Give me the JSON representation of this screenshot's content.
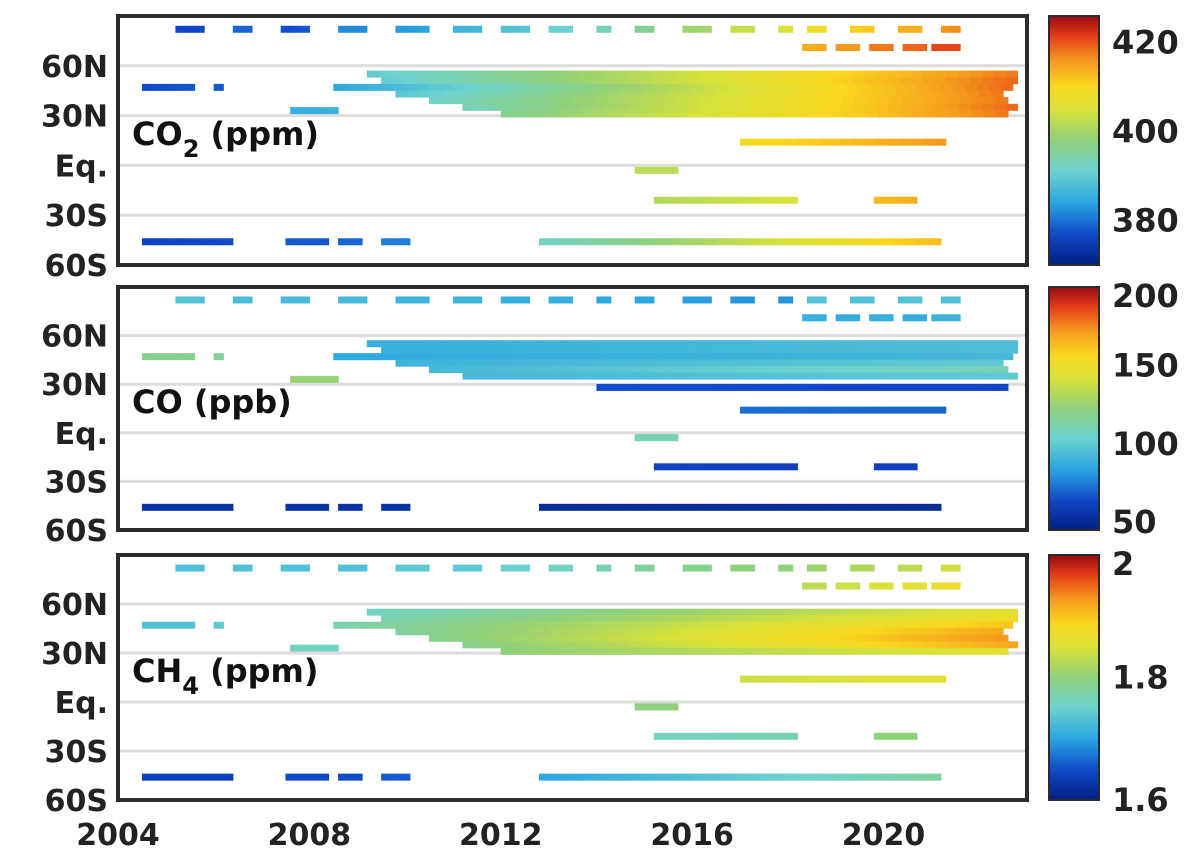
{
  "chart_data": [
    {
      "type": "heatmap",
      "title_main": "CO",
      "title_sub": "2",
      "title_rest": " (ppm)",
      "xlim": [
        2004,
        2023
      ],
      "ylim": [
        -60,
        90
      ],
      "x_ticks": [
        "2004",
        "2008",
        "2012",
        "2016",
        "2020"
      ],
      "y_ticks": [
        "60N",
        "30N",
        "Eq.",
        "30S",
        "60S"
      ],
      "colorbar": {
        "range": [
          370,
          426
        ],
        "ticks": [
          {
            "v": 420,
            "label": "420"
          },
          {
            "v": 400,
            "label": "400"
          },
          {
            "v": 380,
            "label": "380"
          }
        ]
      },
      "tracks": [
        {
          "lat": 82,
          "segments": [
            [
              2005.2,
              2005.8,
              376,
              377
            ],
            [
              2006.4,
              2006.8,
              379,
              379
            ],
            [
              2007.4,
              2008.0,
              377,
              378
            ],
            [
              2008.6,
              2009.2,
              382,
              382
            ],
            [
              2009.8,
              2010.5,
              383,
              384
            ],
            [
              2011.0,
              2011.6,
              386,
              387
            ],
            [
              2012.0,
              2012.6,
              388,
              389
            ],
            [
              2013.0,
              2013.5,
              391,
              391
            ],
            [
              2014.0,
              2014.3,
              393,
              393
            ],
            [
              2014.8,
              2015.2,
              396,
              396
            ],
            [
              2015.8,
              2016.4,
              399,
              400
            ],
            [
              2016.8,
              2017.3,
              403,
              403
            ],
            [
              2017.8,
              2018.1,
              405,
              405
            ],
            [
              2018.4,
              2018.8,
              408,
              409
            ],
            [
              2019.3,
              2019.8,
              411,
              412
            ],
            [
              2020.3,
              2020.8,
              414,
              414
            ],
            [
              2021.2,
              2021.6,
              416,
              417
            ]
          ]
        },
        {
          "lat": 71,
          "segments": [
            [
              2018.3,
              2018.8,
              414,
              415
            ],
            [
              2019.0,
              2019.5,
              416,
              416
            ],
            [
              2019.7,
              2020.2,
              418,
              418
            ],
            [
              2020.4,
              2020.9,
              419,
              419
            ],
            [
              2021.0,
              2021.6,
              421,
              421
            ]
          ]
        },
        {
          "lat": 55,
          "segments": [
            [
              2009.2,
              2022.8,
              390,
              418
            ]
          ]
        },
        {
          "lat": 51,
          "segments": [
            [
              2009.5,
              2022.8,
              390,
              419
            ]
          ]
        },
        {
          "lat": 47,
          "segments": [
            [
              2004.5,
              2005.6,
              377,
              378
            ],
            [
              2006.0,
              2006.2,
              378,
              378
            ],
            [
              2008.5,
              2022.7,
              384,
              419
            ]
          ]
        },
        {
          "lat": 43,
          "segments": [
            [
              2009.8,
              2022.5,
              389,
              418
            ]
          ]
        },
        {
          "lat": 39,
          "segments": [
            [
              2010.5,
              2022.6,
              392,
              418
            ]
          ]
        },
        {
          "lat": 35,
          "segments": [
            [
              2011.2,
              2022.8,
              393,
              419
            ]
          ]
        },
        {
          "lat": 33,
          "segments": [
            [
              2007.6,
              2008.6,
              385,
              386
            ]
          ]
        },
        {
          "lat": 31,
          "segments": [
            [
              2012.0,
              2022.6,
              396,
              418
            ]
          ]
        },
        {
          "lat": 14,
          "segments": [
            [
              2017.0,
              2021.3,
              409,
              416
            ]
          ]
        },
        {
          "lat": -3,
          "segments": [
            [
              2014.8,
              2015.7,
              402,
              402
            ]
          ]
        },
        {
          "lat": -21,
          "segments": [
            [
              2015.2,
              2018.2,
              401,
              405
            ],
            [
              2019.8,
              2020.7,
              413,
              414
            ]
          ]
        },
        {
          "lat": -46,
          "segments": [
            [
              2004.5,
              2006.4,
              376,
              377
            ],
            [
              2007.5,
              2008.4,
              378,
              378
            ],
            [
              2008.6,
              2009.1,
              379,
              379
            ],
            [
              2009.5,
              2010.1,
              381,
              381
            ],
            [
              2012.8,
              2021.2,
              392,
              413
            ]
          ]
        }
      ]
    },
    {
      "type": "heatmap",
      "title_main": "CO (ppb)",
      "title_sub": "",
      "title_rest": "",
      "xlim": [
        2004,
        2023
      ],
      "ylim": [
        -60,
        90
      ],
      "x_ticks": [
        "2004",
        "2008",
        "2012",
        "2016",
        "2020"
      ],
      "y_ticks": [
        "60N",
        "30N",
        "Eq.",
        "30S",
        "60S"
      ],
      "colorbar": {
        "range": [
          45,
          200
        ],
        "ticks": [
          {
            "v": 200,
            "label": "200"
          },
          {
            "v": 150,
            "label": "150"
          },
          {
            "v": 100,
            "label": "100"
          },
          {
            "v": 50,
            "label": "50"
          }
        ]
      },
      "tracks": [
        {
          "lat": 82,
          "segments": [
            [
              2005.2,
              2005.8,
              96,
              96
            ],
            [
              2006.4,
              2006.8,
              94,
              94
            ],
            [
              2007.4,
              2008.0,
              92,
              92
            ],
            [
              2008.6,
              2009.2,
              92,
              92
            ],
            [
              2009.8,
              2010.5,
              90,
              90
            ],
            [
              2011.0,
              2011.6,
              90,
              90
            ],
            [
              2012.0,
              2012.6,
              88,
              88
            ],
            [
              2013.0,
              2013.5,
              88,
              88
            ],
            [
              2014.0,
              2014.3,
              85,
              85
            ],
            [
              2014.8,
              2015.2,
              84,
              84
            ],
            [
              2015.8,
              2016.4,
              82,
              82
            ],
            [
              2016.8,
              2017.3,
              80,
              80
            ],
            [
              2017.8,
              2018.1,
              80,
              80
            ],
            [
              2018.4,
              2018.8,
              96,
              96
            ],
            [
              2019.3,
              2019.8,
              95,
              95
            ],
            [
              2020.3,
              2020.8,
              96,
              96
            ],
            [
              2021.2,
              2021.6,
              95,
              95
            ]
          ]
        },
        {
          "lat": 71,
          "segments": [
            [
              2018.3,
              2018.8,
              88,
              88
            ],
            [
              2019.0,
              2019.5,
              87,
              87
            ],
            [
              2019.7,
              2020.2,
              88,
              88
            ],
            [
              2020.4,
              2020.9,
              87,
              87
            ],
            [
              2021.0,
              2021.6,
              90,
              90
            ]
          ]
        },
        {
          "lat": 55,
          "segments": [
            [
              2009.2,
              2022.8,
              88,
              95
            ]
          ]
        },
        {
          "lat": 51,
          "segments": [
            [
              2009.5,
              2022.8,
              88,
              95
            ]
          ]
        },
        {
          "lat": 47,
          "segments": [
            [
              2004.5,
              2005.6,
              118,
              118
            ],
            [
              2006.0,
              2006.2,
              115,
              115
            ],
            [
              2008.5,
              2022.7,
              85,
              92
            ]
          ]
        },
        {
          "lat": 43,
          "segments": [
            [
              2009.8,
              2022.5,
              90,
              100
            ]
          ]
        },
        {
          "lat": 39,
          "segments": [
            [
              2010.5,
              2022.6,
              92,
              110
            ]
          ]
        },
        {
          "lat": 35,
          "segments": [
            [
              2011.2,
              2022.8,
              92,
              100
            ]
          ]
        },
        {
          "lat": 33,
          "segments": [
            [
              2007.6,
              2008.6,
              125,
              125
            ]
          ]
        },
        {
          "lat": 28,
          "segments": [
            [
              2014.0,
              2022.6,
              65,
              62
            ]
          ]
        },
        {
          "lat": 14,
          "segments": [
            [
              2017.0,
              2021.3,
              72,
              70
            ]
          ]
        },
        {
          "lat": -3,
          "segments": [
            [
              2014.8,
              2015.7,
              110,
              110
            ]
          ]
        },
        {
          "lat": -21,
          "segments": [
            [
              2015.2,
              2018.2,
              62,
              60
            ],
            [
              2019.8,
              2020.7,
              60,
              60
            ]
          ]
        },
        {
          "lat": -46,
          "segments": [
            [
              2004.5,
              2006.4,
              55,
              55
            ],
            [
              2007.5,
              2008.4,
              55,
              55
            ],
            [
              2008.6,
              2009.1,
              55,
              55
            ],
            [
              2009.5,
              2010.1,
              55,
              55
            ],
            [
              2012.8,
              2021.2,
              52,
              52
            ]
          ]
        }
      ]
    },
    {
      "type": "heatmap",
      "title_main": "CH",
      "title_sub": "4",
      "title_rest": " (ppm)",
      "xlim": [
        2004,
        2023
      ],
      "ylim": [
        -60,
        90
      ],
      "x_ticks": [
        "2004",
        "2008",
        "2012",
        "2016",
        "2020"
      ],
      "y_ticks": [
        "60N",
        "30N",
        "Eq.",
        "30S",
        "60S"
      ],
      "colorbar": {
        "range": [
          1.6,
          2.0
        ],
        "ticks": [
          {
            "v": 2.0,
            "label": "2"
          },
          {
            "v": 1.8,
            "label": "1.8"
          },
          {
            "v": 1.6,
            "label": "1.6"
          }
        ]
      },
      "tracks": [
        {
          "lat": 82,
          "segments": [
            [
              2005.2,
              2005.8,
              1.73,
              1.73
            ],
            [
              2006.4,
              2006.8,
              1.73,
              1.73
            ],
            [
              2007.4,
              2008.0,
              1.73,
              1.73
            ],
            [
              2008.6,
              2009.2,
              1.73,
              1.73
            ],
            [
              2009.8,
              2010.5,
              1.74,
              1.74
            ],
            [
              2011.0,
              2011.6,
              1.74,
              1.74
            ],
            [
              2012.0,
              2012.6,
              1.75,
              1.75
            ],
            [
              2013.0,
              2013.5,
              1.76,
              1.76
            ],
            [
              2014.0,
              2014.3,
              1.77,
              1.77
            ],
            [
              2014.8,
              2015.2,
              1.78,
              1.78
            ],
            [
              2015.8,
              2016.4,
              1.79,
              1.79
            ],
            [
              2016.8,
              2017.3,
              1.8,
              1.8
            ],
            [
              2017.8,
              2018.1,
              1.8,
              1.8
            ],
            [
              2018.4,
              2018.8,
              1.81,
              1.81
            ],
            [
              2019.3,
              2019.8,
              1.82,
              1.82
            ],
            [
              2020.3,
              2020.8,
              1.83,
              1.83
            ],
            [
              2021.2,
              2021.6,
              1.84,
              1.84
            ]
          ]
        },
        {
          "lat": 71,
          "segments": [
            [
              2018.3,
              2018.8,
              1.83,
              1.83
            ],
            [
              2019.0,
              2019.5,
              1.84,
              1.84
            ],
            [
              2019.7,
              2020.2,
              1.85,
              1.85
            ],
            [
              2020.4,
              2020.9,
              1.86,
              1.86
            ],
            [
              2021.0,
              2021.6,
              1.87,
              1.87
            ]
          ]
        },
        {
          "lat": 55,
          "segments": [
            [
              2009.2,
              2022.8,
              1.76,
              1.86
            ]
          ]
        },
        {
          "lat": 51,
          "segments": [
            [
              2009.5,
              2022.8,
              1.77,
              1.88
            ]
          ]
        },
        {
          "lat": 47,
          "segments": [
            [
              2004.5,
              2005.6,
              1.73,
              1.73
            ],
            [
              2006.0,
              2006.2,
              1.74,
              1.74
            ],
            [
              2008.5,
              2022.7,
              1.77,
              1.9
            ]
          ]
        },
        {
          "lat": 43,
          "segments": [
            [
              2009.8,
              2022.5,
              1.78,
              1.92
            ]
          ]
        },
        {
          "lat": 39,
          "segments": [
            [
              2010.5,
              2022.6,
              1.79,
              1.93
            ]
          ]
        },
        {
          "lat": 35,
          "segments": [
            [
              2011.2,
              2022.8,
              1.79,
              1.92
            ]
          ]
        },
        {
          "lat": 33,
          "segments": [
            [
              2007.6,
              2008.6,
              1.76,
              1.76
            ]
          ]
        },
        {
          "lat": 31,
          "segments": [
            [
              2012.0,
              2022.6,
              1.8,
              1.86
            ]
          ]
        },
        {
          "lat": 14,
          "segments": [
            [
              2017.0,
              2021.3,
              1.84,
              1.86
            ]
          ]
        },
        {
          "lat": -3,
          "segments": [
            [
              2014.8,
              2015.7,
              1.8,
              1.8
            ]
          ]
        },
        {
          "lat": -21,
          "segments": [
            [
              2015.2,
              2018.2,
              1.76,
              1.77
            ],
            [
              2019.8,
              2020.7,
              1.8,
              1.8
            ]
          ]
        },
        {
          "lat": -46,
          "segments": [
            [
              2004.5,
              2006.4,
              1.64,
              1.64
            ],
            [
              2007.5,
              2008.4,
              1.65,
              1.65
            ],
            [
              2008.6,
              2009.1,
              1.65,
              1.65
            ],
            [
              2009.5,
              2010.1,
              1.66,
              1.66
            ],
            [
              2012.8,
              2021.2,
              1.7,
              1.78
            ]
          ]
        }
      ]
    }
  ]
}
